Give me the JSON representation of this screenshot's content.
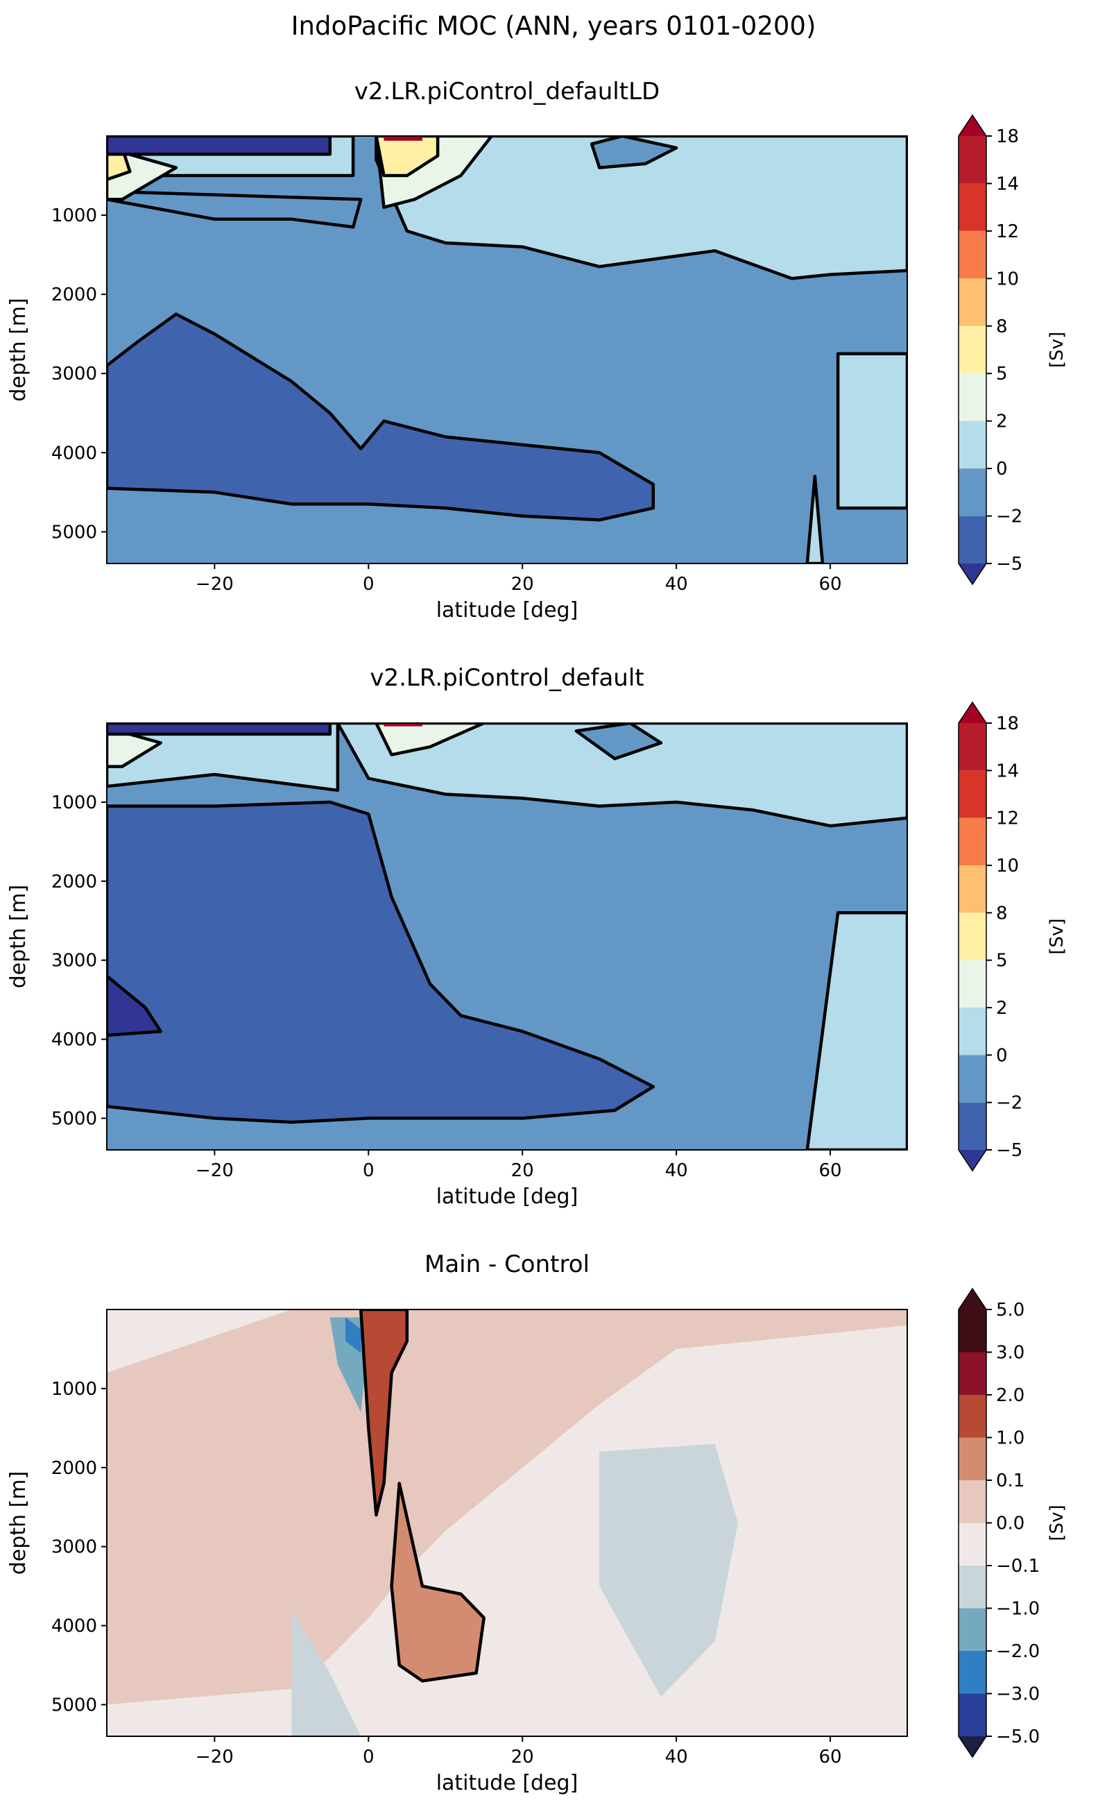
{
  "figure": {
    "title": "IndoPacific MOC (ANN, years 0101-0200)"
  },
  "colors": {
    "blues": [
      "#313695",
      "#4063ad",
      "#6397c6",
      "#b4dceb",
      "#e9f5e8",
      "#fff0a6",
      "#fdbf71",
      "#f67c4a",
      "#d93429",
      "#b61e2c",
      "#a50026"
    ],
    "diff": [
      "#1c2140",
      "#2a3f9c",
      "#2f7fc2",
      "#75a9bf",
      "#c9d5db",
      "#efe8e6",
      "#e6c8be",
      "#d38c72",
      "#b64a34",
      "#8a1329",
      "#3e0d16"
    ],
    "contour": "#000000"
  },
  "chart_data": [
    {
      "type": "contourf",
      "title": "v2.LR.piControl_defaultLD",
      "xlabel": "latitude [deg]",
      "ylabel": "depth [m]",
      "xlim": [
        -34,
        70
      ],
      "ylim": [
        5400,
        0
      ],
      "xticks": [
        -20,
        0,
        20,
        40,
        60
      ],
      "xtick_labels": [
        "−20",
        "0",
        "20",
        "40",
        "60"
      ],
      "yticks": [
        1000,
        2000,
        3000,
        4000,
        5000
      ],
      "ytick_labels": [
        "1000",
        "2000",
        "3000",
        "4000",
        "5000"
      ],
      "colorbar": {
        "label": "[Sv]",
        "levels": [
          -5,
          -2,
          0,
          2,
          5,
          8,
          10,
          12,
          14,
          18
        ],
        "tick_labels": [
          "−5",
          "−2",
          "0",
          "2",
          "5",
          "8",
          "10",
          "12",
          "14",
          "18"
        ],
        "extend": "both"
      }
    },
    {
      "type": "contourf",
      "title": "v2.LR.piControl_default",
      "xlabel": "latitude [deg]",
      "ylabel": "depth [m]",
      "xlim": [
        -34,
        70
      ],
      "ylim": [
        5400,
        0
      ],
      "xticks": [
        -20,
        0,
        20,
        40,
        60
      ],
      "xtick_labels": [
        "−20",
        "0",
        "20",
        "40",
        "60"
      ],
      "yticks": [
        1000,
        2000,
        3000,
        4000,
        5000
      ],
      "ytick_labels": [
        "1000",
        "2000",
        "3000",
        "4000",
        "5000"
      ],
      "colorbar": {
        "label": "[Sv]",
        "levels": [
          -5,
          -2,
          0,
          2,
          5,
          8,
          10,
          12,
          14,
          18
        ],
        "tick_labels": [
          "−5",
          "−2",
          "0",
          "2",
          "5",
          "8",
          "10",
          "12",
          "14",
          "18"
        ],
        "extend": "both"
      }
    },
    {
      "type": "contourf",
      "title": "Main - Control",
      "xlabel": "latitude [deg]",
      "ylabel": "depth [m]",
      "xlim": [
        -34,
        70
      ],
      "ylim": [
        5400,
        0
      ],
      "xticks": [
        -20,
        0,
        20,
        40,
        60
      ],
      "xtick_labels": [
        "−20",
        "0",
        "20",
        "40",
        "60"
      ],
      "yticks": [
        1000,
        2000,
        3000,
        4000,
        5000
      ],
      "ytick_labels": [
        "1000",
        "2000",
        "3000",
        "4000",
        "5000"
      ],
      "colorbar": {
        "label": "[Sv]",
        "levels": [
          -5.0,
          -3.0,
          -2.0,
          -1.0,
          -0.1,
          0.0,
          0.1,
          1.0,
          2.0,
          3.0,
          5.0
        ],
        "tick_labels": [
          "−5.0",
          "−3.0",
          "−2.0",
          "−1.0",
          "−0.1",
          "0.0",
          "0.1",
          "1.0",
          "2.0",
          "3.0",
          "5.0"
        ],
        "extend": "both"
      }
    }
  ]
}
